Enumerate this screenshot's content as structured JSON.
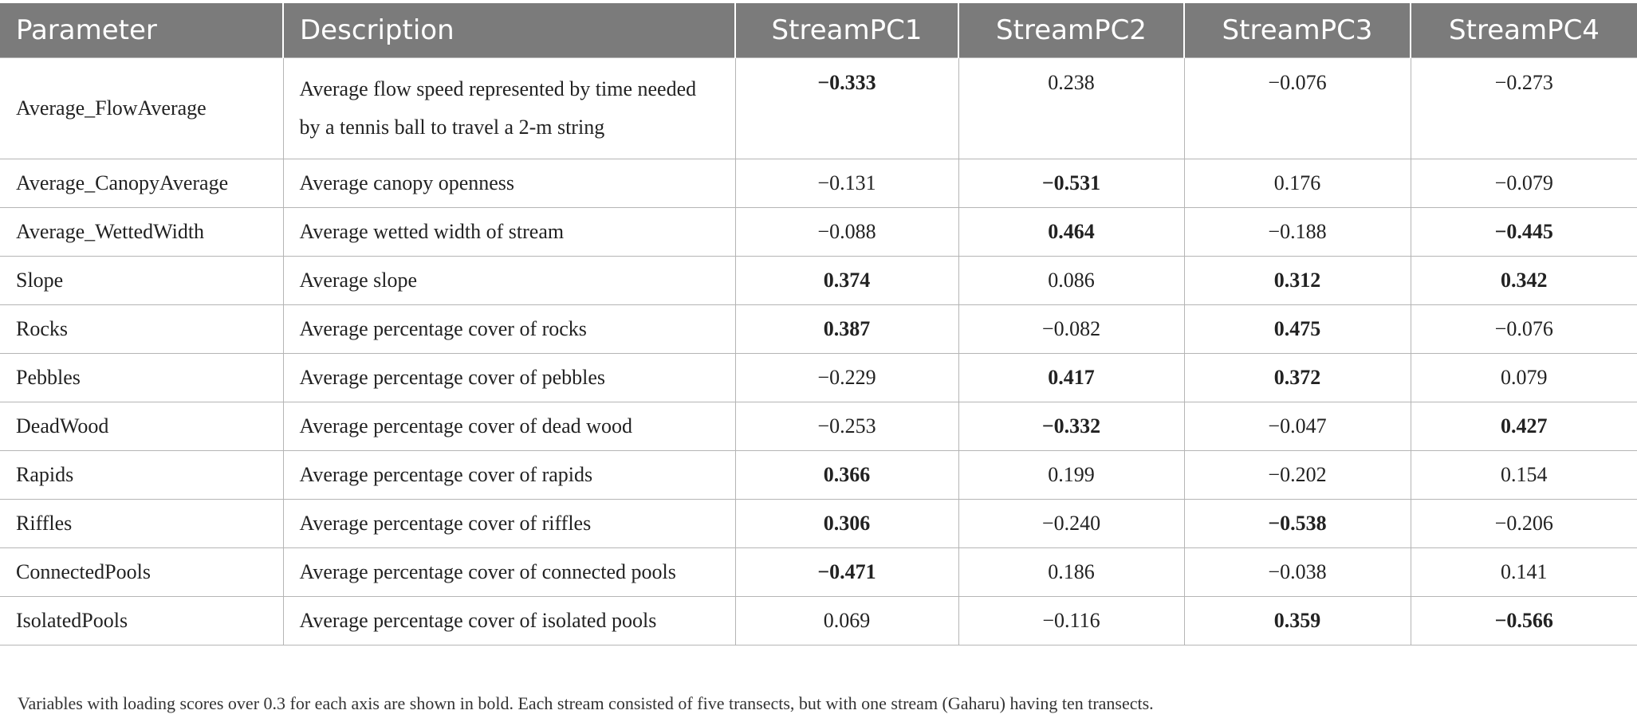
{
  "table": {
    "headers": [
      "Parameter",
      "Description",
      "StreamPC1",
      "StreamPC2",
      "StreamPC3",
      "StreamPC4"
    ],
    "rows": [
      {
        "parameter": "Average_FlowAverage",
        "description": "Average flow speed represented by time needed by a tennis ball to travel a 2-m string",
        "values": [
          "−0.333",
          "0.238",
          "−0.076",
          "−0.273"
        ],
        "bold": [
          true,
          false,
          false,
          false
        ]
      },
      {
        "parameter": "Average_CanopyAverage",
        "description": "Average canopy openness",
        "values": [
          "−0.131",
          "−0.531",
          "0.176",
          "−0.079"
        ],
        "bold": [
          false,
          true,
          false,
          false
        ]
      },
      {
        "parameter": "Average_WettedWidth",
        "description": "Average wetted width of stream",
        "values": [
          "−0.088",
          "0.464",
          "−0.188",
          "−0.445"
        ],
        "bold": [
          false,
          true,
          false,
          true
        ]
      },
      {
        "parameter": "Slope",
        "description": "Average slope",
        "values": [
          "0.374",
          "0.086",
          "0.312",
          "0.342"
        ],
        "bold": [
          true,
          false,
          true,
          true
        ]
      },
      {
        "parameter": "Rocks",
        "description": "Average percentage cover of rocks",
        "values": [
          "0.387",
          "−0.082",
          "0.475",
          "−0.076"
        ],
        "bold": [
          true,
          false,
          true,
          false
        ]
      },
      {
        "parameter": "Pebbles",
        "description": "Average percentage cover of pebbles",
        "values": [
          "−0.229",
          "0.417",
          "0.372",
          "0.079"
        ],
        "bold": [
          false,
          true,
          true,
          false
        ]
      },
      {
        "parameter": "DeadWood",
        "description": "Average percentage cover of dead wood",
        "values": [
          "−0.253",
          "−0.332",
          "−0.047",
          "0.427"
        ],
        "bold": [
          false,
          true,
          false,
          true
        ]
      },
      {
        "parameter": "Rapids",
        "description": "Average percentage cover of rapids",
        "values": [
          "0.366",
          "0.199",
          "−0.202",
          "0.154"
        ],
        "bold": [
          true,
          false,
          false,
          false
        ]
      },
      {
        "parameter": "Riffles",
        "description": "Average percentage cover of riffles",
        "values": [
          "0.306",
          "−0.240",
          "−0.538",
          "−0.206"
        ],
        "bold": [
          true,
          false,
          true,
          false
        ]
      },
      {
        "parameter": "ConnectedPools",
        "description": "Average percentage cover of connected pools",
        "values": [
          "−0.471",
          "0.186",
          "−0.038",
          "0.141"
        ],
        "bold": [
          true,
          false,
          false,
          false
        ]
      },
      {
        "parameter": "IsolatedPools",
        "description": "Average percentage cover of isolated pools",
        "values": [
          "0.069",
          "−0.116",
          "0.359",
          "−0.566"
        ],
        "bold": [
          false,
          false,
          true,
          true
        ]
      }
    ]
  },
  "footnote": "Variables with loading scores over 0.3 for each axis are shown in bold. Each stream consisted of five transects, but with one stream (Gaharu) having ten transects.",
  "colors": {
    "header_bg": "#7b7b7b",
    "header_text": "#ffffff",
    "grid": "#b5b5b5"
  }
}
